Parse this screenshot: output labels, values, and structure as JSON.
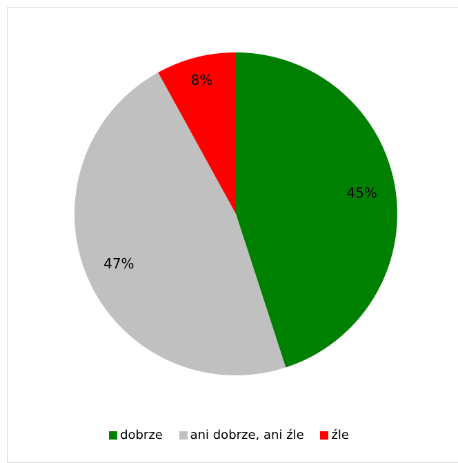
{
  "chart_data": {
    "type": "pie",
    "slices": [
      {
        "label": "dobrze",
        "value": 45,
        "display": "45%",
        "color": "#008000"
      },
      {
        "label": "ani dobrze, ani źle",
        "value": 47,
        "display": "47%",
        "color": "#c0c0c0"
      },
      {
        "label": "źle",
        "value": 8,
        "display": "8%",
        "color": "#ff0000"
      }
    ],
    "start_angle_deg": 0,
    "direction": "clockwise",
    "legend_position": "bottom"
  }
}
